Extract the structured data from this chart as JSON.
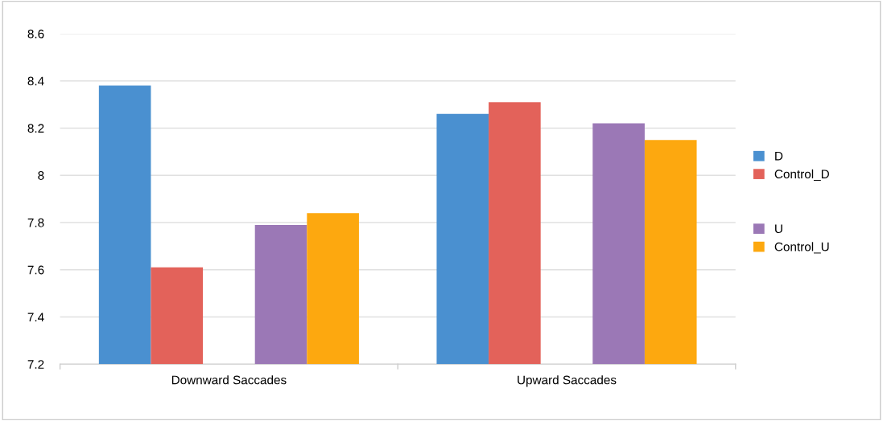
{
  "chart_data": {
    "type": "bar",
    "categories": [
      "Downward Saccades",
      "Upward Saccades"
    ],
    "series": [
      {
        "name": "D",
        "color": "#4a90d0",
        "values": [
          8.38,
          8.26
        ]
      },
      {
        "name": "Control_D",
        "color": "#e3625a",
        "values": [
          7.61,
          8.31
        ]
      },
      {
        "name": "U",
        "color": "#9b78b6",
        "values": [
          7.79,
          8.22
        ]
      },
      {
        "name": "Control_U",
        "color": "#fda80f",
        "values": [
          7.84,
          8.15
        ]
      }
    ],
    "ylim": [
      7.2,
      8.6
    ],
    "yticks": [
      7.2,
      7.4,
      7.6,
      7.8,
      {
        "value": 8.0,
        "label": "8"
      },
      8.2,
      8.4,
      8.6
    ],
    "grid": "y",
    "legend": "right"
  }
}
